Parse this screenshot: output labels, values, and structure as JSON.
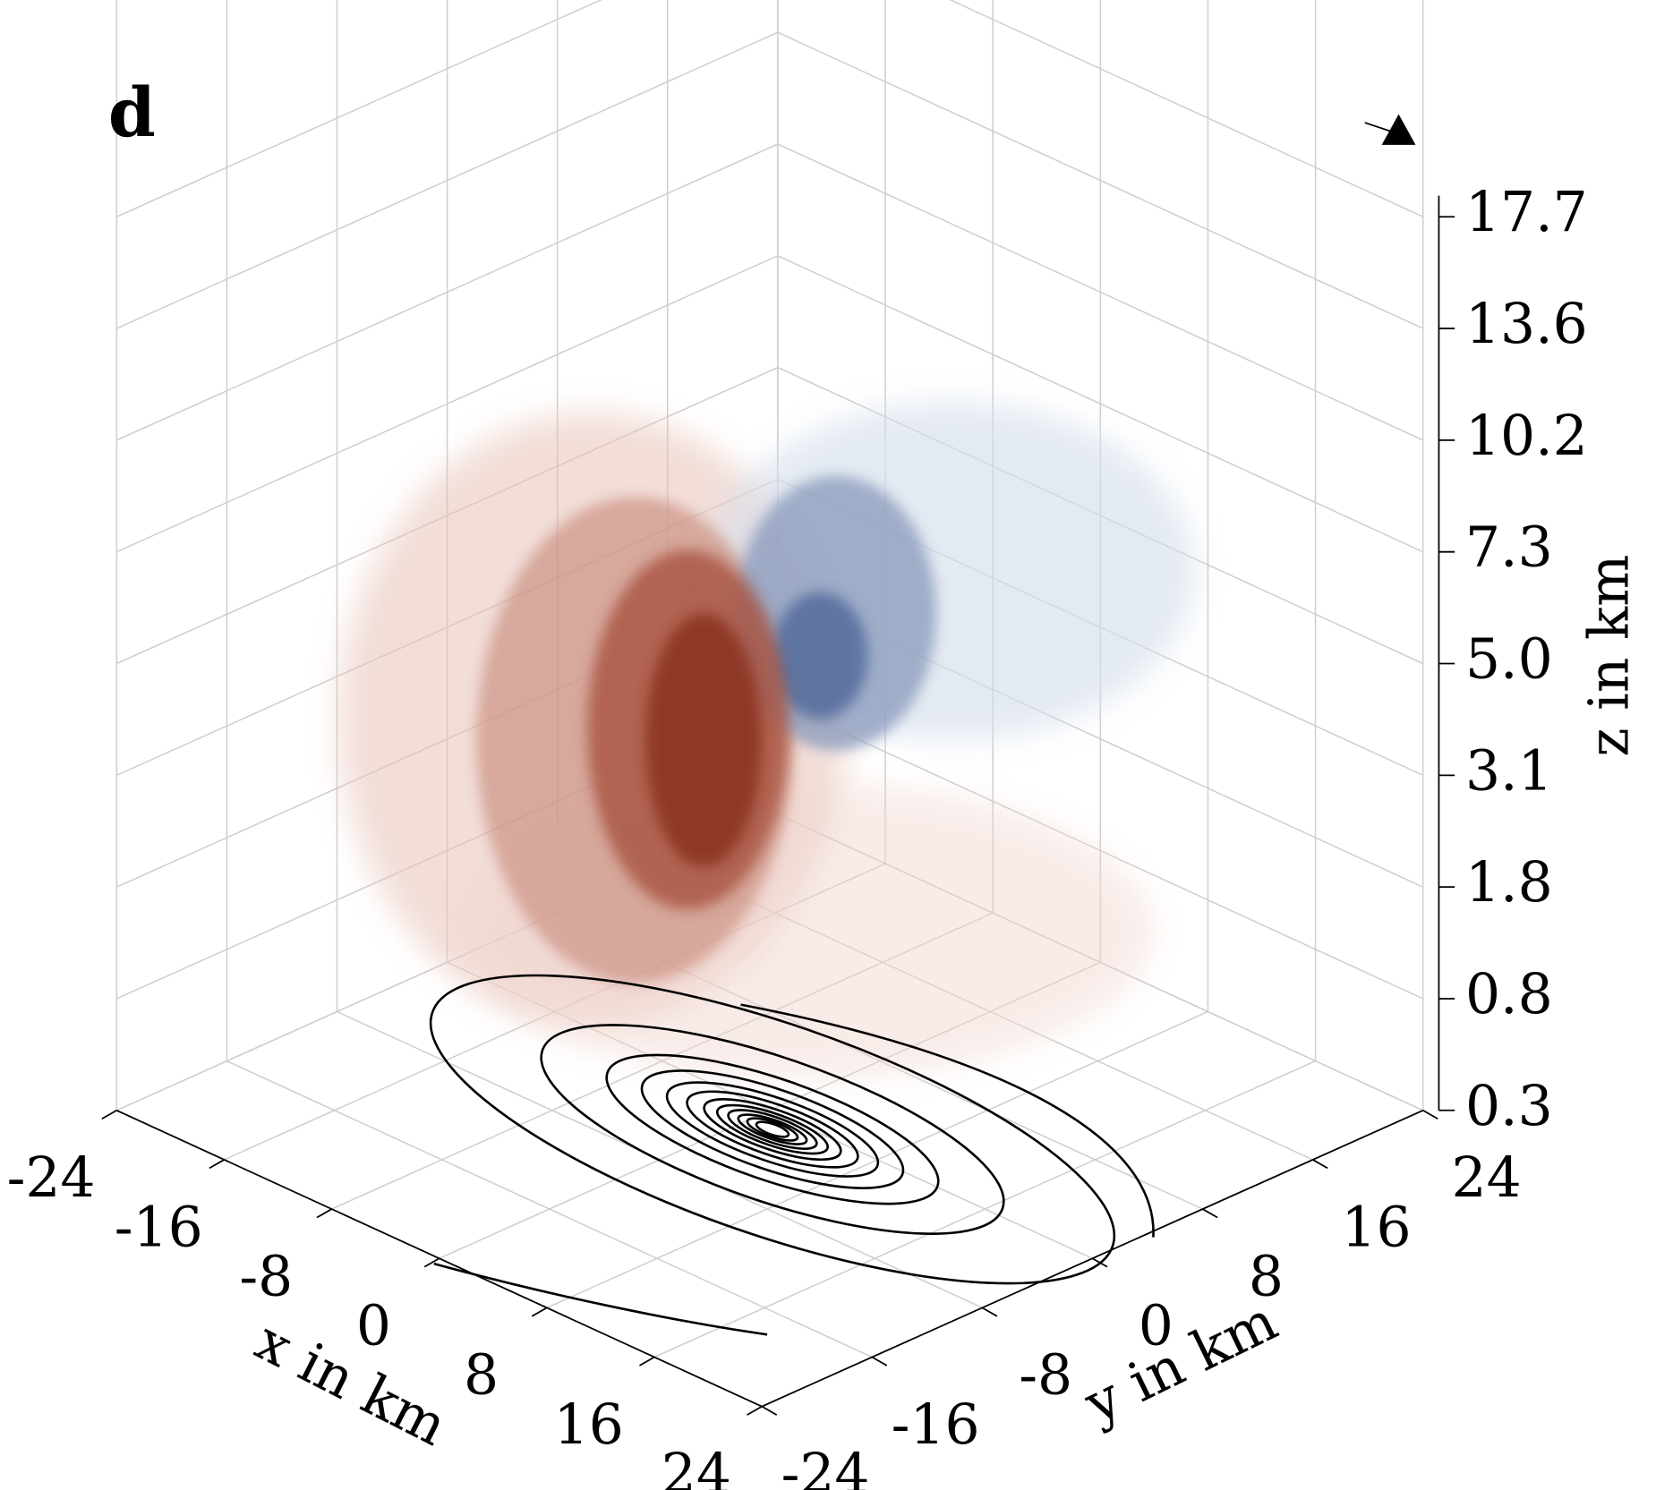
{
  "chart_data": {
    "type": "volume3d",
    "panel_label": "d",
    "xlabel": "x in km",
    "ylabel": "y in km",
    "zlabel": "z in km",
    "xlim": [
      -24,
      24
    ],
    "ylim": [
      -24,
      24
    ],
    "xticks": [
      -24,
      -16,
      -8,
      0,
      8,
      16,
      24
    ],
    "yticks": [
      -24,
      -16,
      -8,
      0,
      8,
      16,
      24
    ],
    "zticks": [
      0.3,
      0.8,
      1.8,
      3.1,
      {
        "value": 5,
        "label": "5.0"
      },
      7.3,
      10.2,
      13.6,
      17.7
    ],
    "grid": true
  }
}
